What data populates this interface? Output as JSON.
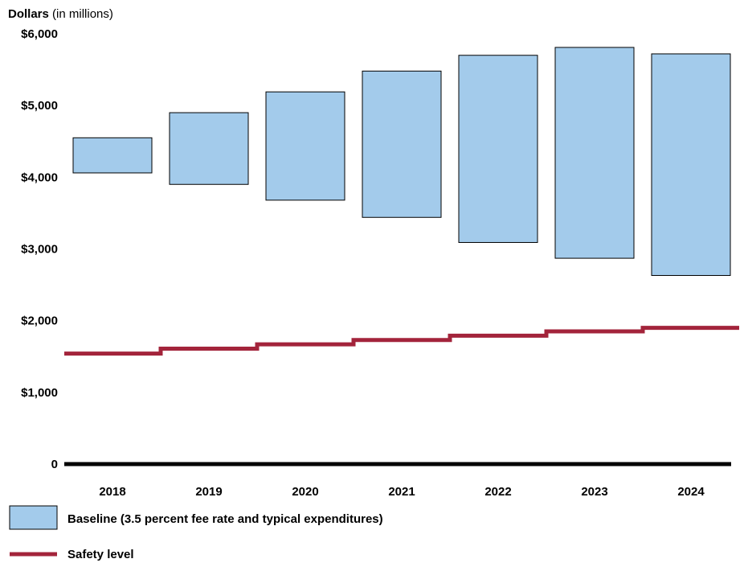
{
  "chart_data": {
    "type": "bar",
    "ylabel_bold": "Dollars",
    "ylabel_rest": " (in millions)",
    "categories": [
      "2018",
      "2019",
      "2020",
      "2021",
      "2022",
      "2023",
      "2024"
    ],
    "ylim": [
      0,
      6000
    ],
    "yticks": [
      {
        "value": 6000,
        "label": "$6,000"
      },
      {
        "value": 5000,
        "label": "$5,000"
      },
      {
        "value": 4000,
        "label": "$4,000"
      },
      {
        "value": 3000,
        "label": "$3,000"
      },
      {
        "value": 2000,
        "label": "$2,000"
      },
      {
        "value": 1000,
        "label": "$1,000"
      },
      {
        "value": 0,
        "label": "0"
      }
    ],
    "series": [
      {
        "name": "Baseline (3.5 percent fee rate and typical expenditures)",
        "type": "floating-bar",
        "low": [
          4060,
          3900,
          3680,
          3440,
          3090,
          2870,
          2630
        ],
        "high": [
          4550,
          4900,
          5190,
          5480,
          5700,
          5810,
          5720
        ]
      },
      {
        "name": "Safety level",
        "type": "step",
        "values": [
          1540,
          1610,
          1670,
          1730,
          1790,
          1850,
          1900
        ]
      }
    ],
    "grid": false,
    "legend": "bottom-left"
  },
  "colors": {
    "bar_fill": "#a3cbeb",
    "bar_stroke": "#000000",
    "safety_line": "#a3243b",
    "axis": "#000000"
  }
}
